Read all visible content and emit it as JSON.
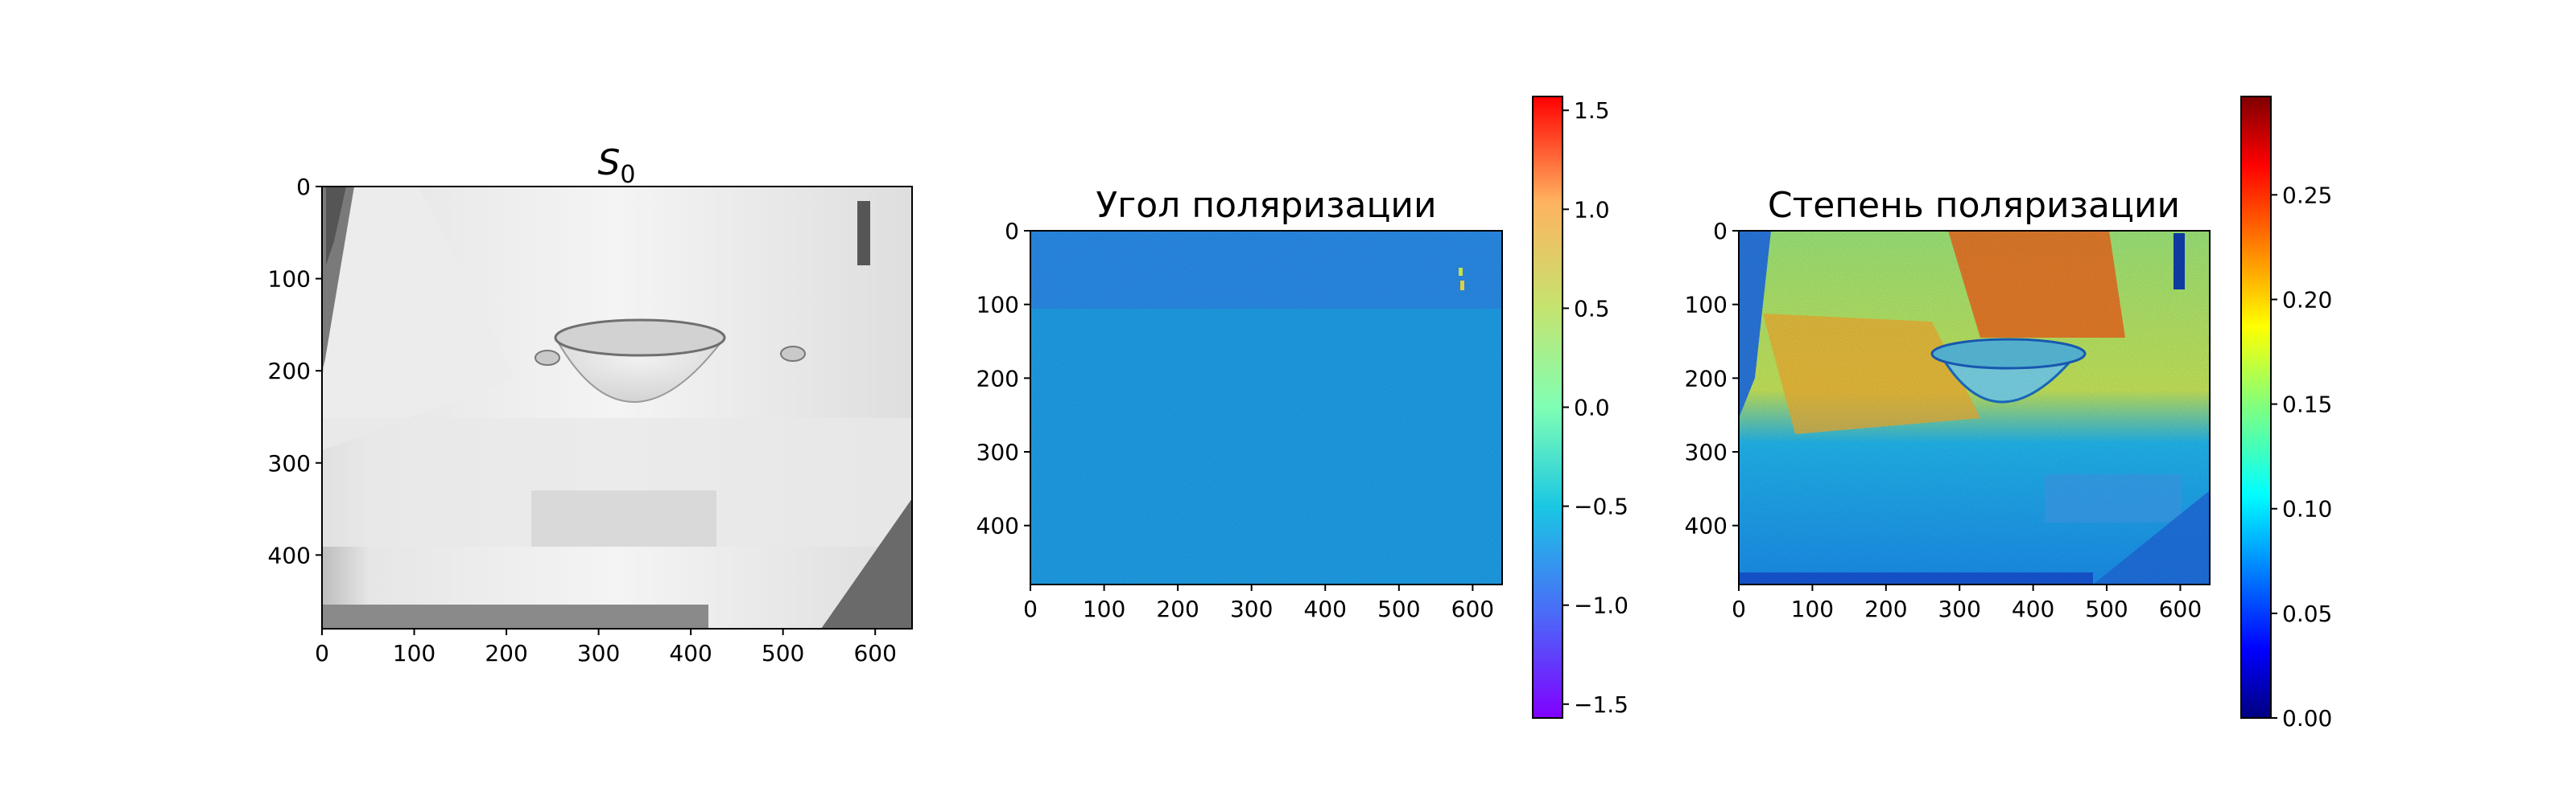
{
  "chart_data": [
    {
      "type": "heatmap",
      "title_base": "S",
      "title_sub": "0",
      "colormap": "gray",
      "x_ticks": [
        "0",
        "100",
        "200",
        "300",
        "400",
        "500",
        "600"
      ],
      "y_ticks": [
        "0",
        "100",
        "200",
        "300",
        "400"
      ],
      "xlim": [
        0,
        640
      ],
      "ylim": [
        480,
        0
      ],
      "colorbar": false
    },
    {
      "type": "heatmap",
      "title": "Угол поляризации",
      "colormap": "rainbow",
      "x_ticks": [
        "0",
        "100",
        "200",
        "300",
        "400",
        "500",
        "600"
      ],
      "y_ticks": [
        "0",
        "100",
        "200",
        "300",
        "400"
      ],
      "xlim": [
        0,
        640
      ],
      "ylim": [
        480,
        0
      ],
      "colorbar": true,
      "colorbar_range": [
        -1.57,
        1.57
      ],
      "colorbar_ticks": [
        "1.5",
        "1.0",
        "0.5",
        "0.0",
        "−0.5",
        "−1.0",
        "−1.5"
      ],
      "colorbar_values": [
        1.5,
        1.0,
        0.5,
        0.0,
        -0.5,
        -1.0,
        -1.5
      ]
    },
    {
      "type": "heatmap",
      "title": "Степень поляризации",
      "colormap": "jet",
      "x_ticks": [
        "0",
        "100",
        "200",
        "300",
        "400",
        "500",
        "600"
      ],
      "y_ticks": [
        "0",
        "100",
        "200",
        "300",
        "400"
      ],
      "xlim": [
        0,
        640
      ],
      "ylim": [
        480,
        0
      ],
      "colorbar": true,
      "colorbar_range": [
        0.0,
        0.297
      ],
      "colorbar_ticks": [
        "0.25",
        "0.20",
        "0.15",
        "0.10",
        "0.05",
        "0.00"
      ],
      "colorbar_values": [
        0.25,
        0.2,
        0.15,
        0.1,
        0.05,
        0.0
      ]
    }
  ]
}
